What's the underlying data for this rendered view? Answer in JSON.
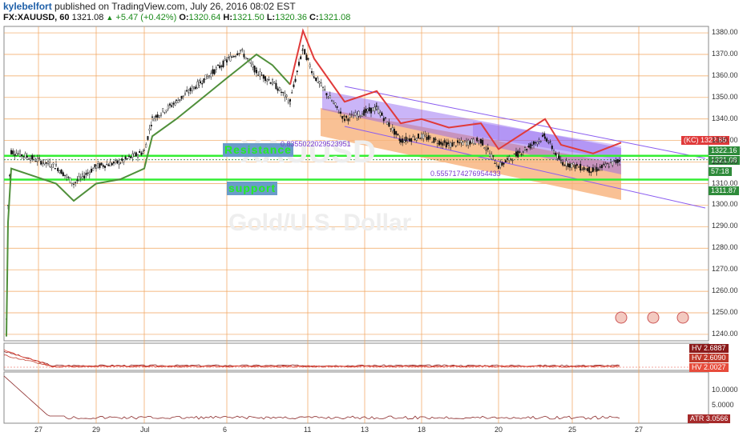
{
  "header": {
    "user": "kylebelfort",
    "published": " published on TradingView.com, July 26, 2016 08:02 EST"
  },
  "symbol_bar": {
    "symbol": "FX:XAUUSD, 60",
    "last": "1321.08",
    "change": "+5.47 (+0.42%)",
    "o_label": "O:",
    "o": "1320.64",
    "h_label": "H:",
    "h": "1321.50",
    "l_label": "L:",
    "l": "1320.36",
    "c_label": "C:",
    "c": "1321.08"
  },
  "watermark": {
    "ticker": "XAUUSD",
    "name": "Gold/U.S. Dollar"
  },
  "drawings": {
    "resistance_label": "Resistance",
    "support_label": "support",
    "fib_upper": "0.8355022029523951",
    "fib_lower": "0.5557174276954433"
  },
  "price_axis": {
    "ticks": [
      "1380.00",
      "1370.00",
      "1360.00",
      "1350.00",
      "1340.00",
      "1330.00",
      "1320.00",
      "1310.00",
      "1300.00",
      "1290.00",
      "1280.00",
      "1270.00",
      "1260.00",
      "1250.00",
      "1240.00"
    ],
    "tags": [
      {
        "text": "(KC) 1322.65",
        "color": "#e03a3a"
      },
      {
        "text": "1322.16",
        "color": "#2e8b3a"
      },
      {
        "text": "1321.08",
        "color": "#2e8b3a"
      },
      {
        "text": "57:18",
        "color": "#2e8b3a"
      },
      {
        "text": "1311.87",
        "color": "#2e8b3a"
      }
    ]
  },
  "hv_panel": {
    "labels": [
      {
        "name": "HV",
        "value": "2.6887",
        "color": "#8b1a1a"
      },
      {
        "name": "HV",
        "value": "2.6090",
        "color": "#c0392b"
      },
      {
        "name": "HV",
        "value": "2.0027",
        "color": "#e74c3c"
      }
    ]
  },
  "atr_panel": {
    "ticks": [
      "10.0000",
      "5.0000"
    ],
    "label": {
      "name": "ATR",
      "value": "3.0566",
      "color": "#a52a2a"
    }
  },
  "x_axis": {
    "labels": [
      "27",
      "29",
      "Jul",
      "6",
      "11",
      "13",
      "18",
      "20",
      "25",
      "27"
    ]
  },
  "colors": {
    "resistance": "#33ee33",
    "support": "#33ee33",
    "grid": "#f0a35a",
    "trend": "#4f8f3a",
    "stop": "#e03a3a",
    "channel": "#8a5cf0",
    "orangeband": "#f7b27a"
  },
  "chart_data": {
    "type": "candlestick",
    "title": "FX:XAUUSD, 60",
    "x_axis_labels": [
      "27",
      "29",
      "Jul",
      "6",
      "11",
      "13",
      "18",
      "20",
      "25",
      "27"
    ],
    "ylim": [
      1237,
      1383
    ],
    "resistance_level": 1322.16,
    "support_level": 1311.87,
    "last_price": 1321.08,
    "close_path": [
      {
        "x": "Jun 24",
        "close": 1247
      },
      {
        "x": "Jun 24",
        "close": 1300
      },
      {
        "x": "Jun 24",
        "close": 1325
      },
      {
        "x": "Jun 27",
        "close": 1322
      },
      {
        "x": "Jun 27",
        "close": 1318
      },
      {
        "x": "Jun 28",
        "close": 1310
      },
      {
        "x": "Jun 29",
        "close": 1318
      },
      {
        "x": "Jun 30",
        "close": 1320
      },
      {
        "x": "Jul 1",
        "close": 1325
      },
      {
        "x": "Jul 1",
        "close": 1340
      },
      {
        "x": "Jul 4",
        "close": 1348
      },
      {
        "x": "Jul 5",
        "close": 1357
      },
      {
        "x": "Jul 6",
        "close": 1367
      },
      {
        "x": "Jul 6",
        "close": 1372
      },
      {
        "x": "Jul 7",
        "close": 1362
      },
      {
        "x": "Jul 8",
        "close": 1357
      },
      {
        "x": "Jul 8",
        "close": 1348
      },
      {
        "x": "Jul 11",
        "close": 1373
      },
      {
        "x": "Jul 11",
        "close": 1360
      },
      {
        "x": "Jul 12",
        "close": 1340
      },
      {
        "x": "Jul 13",
        "close": 1345
      },
      {
        "x": "Jul 14",
        "close": 1330
      },
      {
        "x": "Jul 15",
        "close": 1332
      },
      {
        "x": "Jul 18",
        "close": 1328
      },
      {
        "x": "Jul 19",
        "close": 1330
      },
      {
        "x": "Jul 20",
        "close": 1318
      },
      {
        "x": "Jul 21",
        "close": 1332
      },
      {
        "x": "Jul 22",
        "close": 1320
      },
      {
        "x": "Jul 25",
        "close": 1316
      },
      {
        "x": "Jul 26",
        "close": 1321
      }
    ],
    "hv_values": [
      2.6887,
      2.609,
      2.0027
    ],
    "atr_value": 3.0566
  }
}
